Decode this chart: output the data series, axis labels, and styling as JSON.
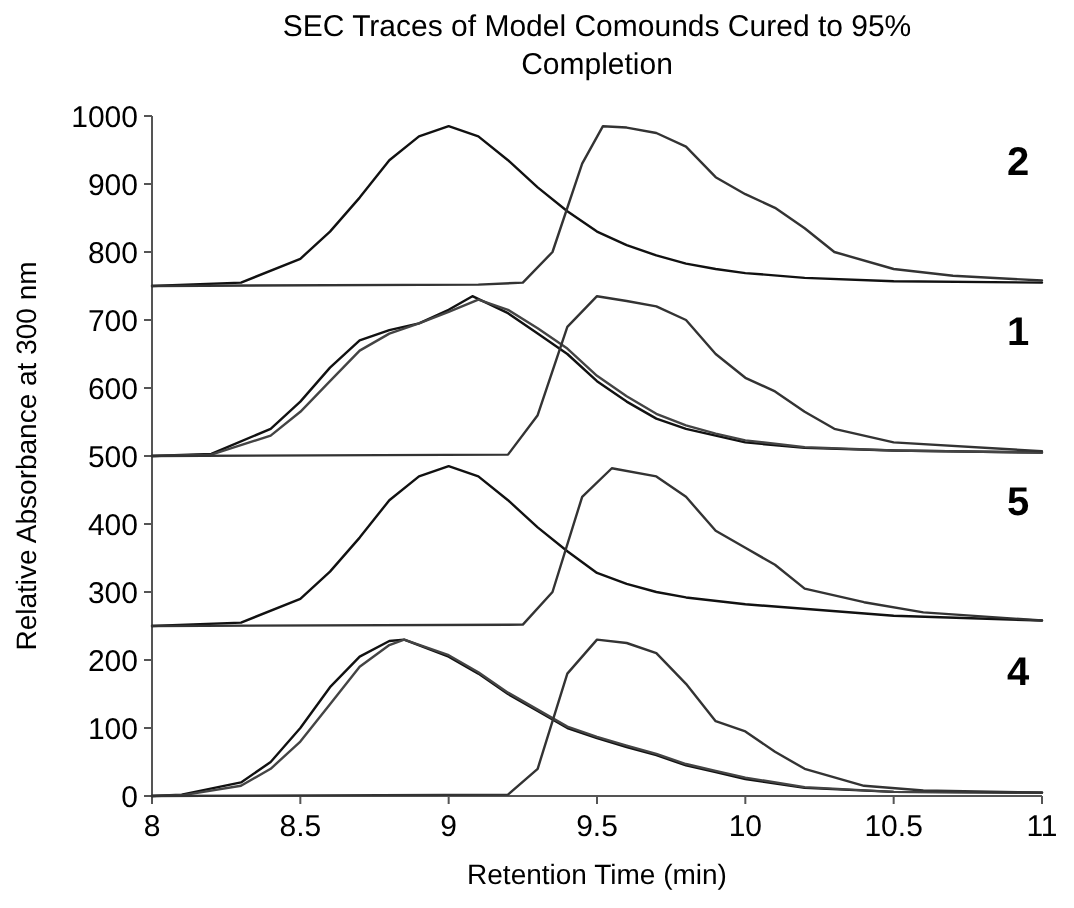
{
  "chart_data": {
    "type": "line",
    "title": "SEC Traces of Model Comounds Cured to 95% Completion",
    "xlabel": "Retention Time (min)",
    "ylabel": "Relative Absorbance at 300 nm",
    "xlim": [
      8,
      11
    ],
    "xticks": [
      8,
      8.5,
      9,
      9.5,
      10,
      10.5,
      11
    ],
    "ylim": [
      0,
      1000
    ],
    "yticks": [
      0,
      100,
      200,
      300,
      400,
      500,
      600,
      700,
      800,
      900,
      1000
    ],
    "grid": false,
    "marker": "none",
    "line_style": "solid",
    "series": [
      {
        "color": "#111111",
        "x": [
          8,
          8.3,
          8.5,
          8.6,
          8.7,
          8.8,
          8.9,
          9,
          9.1,
          9.2,
          9.3,
          9.4,
          9.5,
          9.6,
          9.7,
          9.8,
          9.9,
          10,
          10.2,
          10.5,
          11
        ],
        "values": [
          750,
          755,
          790,
          830,
          880,
          935,
          970,
          985,
          970,
          935,
          895,
          860,
          830,
          810,
          795,
          783,
          775,
          769,
          762,
          757,
          755
        ]
      },
      {
        "color": "#333333",
        "x": [
          8,
          9.1,
          9.25,
          9.35,
          9.45,
          9.52,
          9.6,
          9.7,
          9.8,
          9.9,
          10,
          10.1,
          10.2,
          10.3,
          10.5,
          10.7,
          11
        ],
        "values": [
          750,
          752,
          755,
          800,
          930,
          985,
          983,
          975,
          955,
          910,
          885,
          865,
          835,
          800,
          775,
          765,
          758
        ]
      },
      {
        "color": "#111111",
        "x": [
          8,
          8.2,
          8.4,
          8.5,
          8.6,
          8.7,
          8.8,
          8.9,
          9,
          9.08,
          9.2,
          9.3,
          9.4,
          9.5,
          9.6,
          9.7,
          9.8,
          9.9,
          10,
          10.2,
          10.5,
          11
        ],
        "values": [
          500,
          503,
          540,
          580,
          630,
          670,
          685,
          695,
          715,
          735,
          710,
          680,
          650,
          610,
          580,
          555,
          540,
          530,
          520,
          512,
          508,
          505
        ]
      },
      {
        "color": "#444444",
        "x": [
          8,
          8.2,
          8.4,
          8.5,
          8.6,
          8.7,
          8.8,
          8.9,
          9,
          9.1,
          9.2,
          9.3,
          9.4,
          9.5,
          9.6,
          9.7,
          9.8,
          9.9,
          10,
          10.2,
          10.5,
          11
        ],
        "values": [
          500,
          502,
          530,
          565,
          610,
          655,
          680,
          695,
          712,
          730,
          715,
          688,
          658,
          618,
          588,
          562,
          545,
          533,
          523,
          513,
          508,
          505
        ]
      },
      {
        "color": "#333333",
        "x": [
          8,
          9.2,
          9.3,
          9.4,
          9.5,
          9.6,
          9.7,
          9.8,
          9.9,
          10,
          10.1,
          10.2,
          10.3,
          10.5,
          11
        ],
        "values": [
          500,
          502,
          560,
          690,
          735,
          728,
          720,
          700,
          650,
          615,
          595,
          565,
          540,
          520,
          507
        ]
      },
      {
        "color": "#111111",
        "x": [
          8,
          8.3,
          8.5,
          8.6,
          8.7,
          8.8,
          8.9,
          9,
          9.1,
          9.2,
          9.3,
          9.4,
          9.5,
          9.6,
          9.7,
          9.8,
          10,
          10.5,
          11
        ],
        "values": [
          250,
          255,
          290,
          330,
          380,
          435,
          470,
          485,
          470,
          435,
          395,
          360,
          328,
          312,
          300,
          292,
          282,
          265,
          258
        ]
      },
      {
        "color": "#333333",
        "x": [
          8,
          9.25,
          9.35,
          9.45,
          9.55,
          9.7,
          9.8,
          9.9,
          10,
          10.1,
          10.2,
          10.4,
          10.6,
          11
        ],
        "values": [
          250,
          252,
          300,
          440,
          482,
          470,
          440,
          390,
          365,
          340,
          305,
          285,
          270,
          258
        ]
      },
      {
        "color": "#111111",
        "x": [
          8,
          8.1,
          8.3,
          8.4,
          8.5,
          8.6,
          8.7,
          8.8,
          8.85,
          9,
          9.1,
          9.2,
          9.3,
          9.4,
          9.5,
          9.6,
          9.7,
          9.8,
          9.9,
          10,
          10.2,
          10.5,
          11
        ],
        "values": [
          0,
          2,
          20,
          50,
          100,
          160,
          205,
          228,
          230,
          205,
          180,
          150,
          125,
          100,
          85,
          72,
          60,
          45,
          35,
          25,
          12,
          6,
          5
        ]
      },
      {
        "color": "#444444",
        "x": [
          8,
          8.1,
          8.3,
          8.4,
          8.5,
          8.6,
          8.7,
          8.8,
          8.85,
          9,
          9.1,
          9.2,
          9.3,
          9.4,
          9.5,
          9.6,
          9.7,
          9.8,
          9.9,
          10,
          10.2,
          10.5,
          11
        ],
        "values": [
          0,
          1,
          15,
          40,
          80,
          135,
          190,
          222,
          230,
          207,
          182,
          152,
          127,
          102,
          87,
          74,
          62,
          47,
          37,
          27,
          13,
          6,
          5
        ]
      },
      {
        "color": "#333333",
        "x": [
          8,
          9.2,
          9.3,
          9.4,
          9.5,
          9.6,
          9.7,
          9.8,
          9.9,
          10,
          10.1,
          10.2,
          10.4,
          10.6,
          11
        ],
        "values": [
          0,
          2,
          40,
          180,
          230,
          225,
          210,
          165,
          110,
          95,
          65,
          40,
          15,
          8,
          5
        ]
      }
    ],
    "annotations": [
      "2",
      "1",
      "5",
      "4"
    ]
  }
}
